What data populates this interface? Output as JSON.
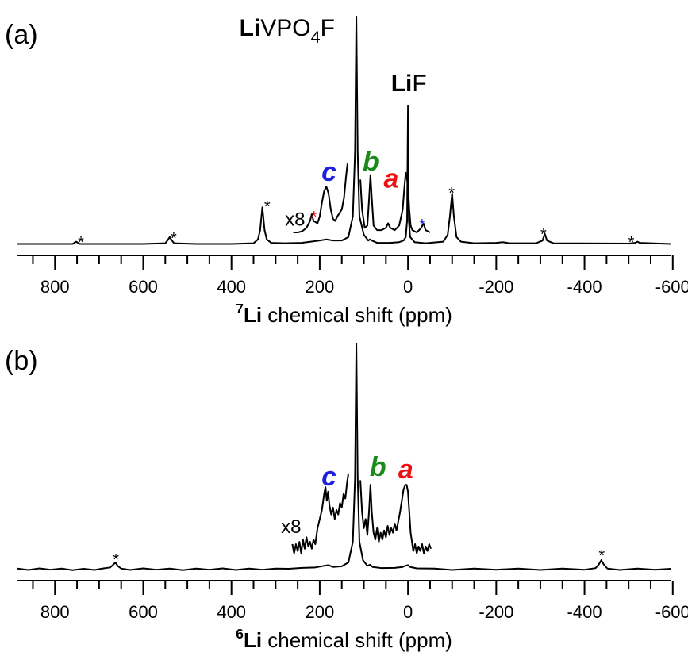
{
  "chart_data": [
    {
      "type": "line",
      "panel_label": "(a)",
      "x_label_parts": [
        {
          "text": "7",
          "sup": true,
          "bold": true
        },
        {
          "text": "Li",
          "bold": true
        },
        {
          "text": " chemical shift (ppm)"
        }
      ],
      "xlim": [
        885,
        -595
      ],
      "ylim": [
        -5,
        100
      ],
      "xticks": [
        800,
        600,
        400,
        200,
        0,
        -200,
        -400,
        -600
      ],
      "xminorticks": [
        850,
        750,
        700,
        650,
        550,
        500,
        450,
        350,
        300,
        250,
        150,
        100,
        50,
        -50,
        -100,
        -150,
        -250,
        -300,
        -350,
        -450,
        -500,
        -550
      ],
      "series": [
        {
          "color": "#000000",
          "x": [
            885,
            800,
            760,
            752,
            744,
            700,
            600,
            550,
            545,
            540,
            535,
            530,
            480,
            400,
            350,
            340,
            335,
            330,
            325,
            320,
            310,
            280,
            240,
            220,
            200,
            185,
            170,
            150,
            135,
            125,
            120,
            117,
            114,
            110,
            100,
            90,
            86,
            82,
            70,
            40,
            20,
            10,
            5,
            2,
            0,
            -2,
            -5,
            -15,
            -40,
            -80,
            -90,
            -95,
            -100,
            -104,
            -110,
            -120,
            -150,
            -200,
            -215,
            -230,
            -290,
            -305,
            -310,
            -315,
            -330,
            -500,
            -515,
            -520,
            -525,
            -595
          ],
          "values": [
            0,
            0,
            0,
            1,
            0,
            0,
            0,
            0.3,
            1.5,
            3,
            1.5,
            0.3,
            0,
            0,
            0.3,
            2,
            6,
            16,
            6,
            2,
            0.5,
            0.3,
            0.5,
            1,
            1.5,
            2,
            1.5,
            1.5,
            3,
            12,
            40,
            99,
            40,
            12,
            4,
            1.5,
            2,
            1.5,
            0.5,
            0.5,
            0.8,
            1.5,
            3,
            10,
            60,
            10,
            3,
            0.8,
            0.3,
            1,
            4,
            12,
            22,
            12,
            3,
            1,
            0.3,
            0.5,
            0.8,
            0.3,
            0.3,
            1.5,
            4.5,
            1.5,
            0.3,
            0.2,
            0.5,
            1,
            0.5,
            0
          ]
        },
        {
          "color": "#000000",
          "x": [
            260,
            250,
            240,
            230,
            222,
            218,
            214,
            205,
            200,
            195,
            190,
            185,
            180,
            175,
            170,
            165,
            160,
            150,
            145,
            140,
            137,
            130,
            108,
            104,
            98,
            92,
            88,
            85,
            82,
            78,
            70,
            60,
            50,
            45,
            40,
            30,
            20,
            12,
            8,
            5,
            2,
            0,
            -3,
            -6,
            -10,
            -20,
            -30,
            -35,
            -40,
            -50
          ],
          "values": [
            5,
            5,
            5.5,
            7,
            10,
            13,
            10,
            9,
            12,
            18,
            23,
            25,
            22,
            15,
            11,
            10,
            12,
            15,
            20,
            30,
            35,
            null,
            28,
            15,
            7,
            8,
            20,
            30,
            20,
            8,
            6,
            6,
            7,
            9,
            7,
            6,
            8,
            15,
            25,
            31,
            28,
            25,
            15,
            8,
            6,
            5,
            7,
            9,
            6,
            5
          ]
        }
      ],
      "annotations": [
        {
          "parts": [
            {
              "text": "Li",
              "bold": true
            },
            {
              "text": "VPO"
            },
            {
              "text": "4",
              "sub": true
            },
            {
              "text": "F"
            }
          ],
          "x": 274,
          "y": 90.7,
          "style": "formula",
          "color": "#000000"
        },
        {
          "parts": [
            {
              "text": "Li",
              "bold": true
            },
            {
              "text": "F"
            }
          ],
          "x": -2,
          "y": 66.5,
          "style": "formula",
          "color": "#000000"
        },
        {
          "parts": [
            {
              "text": "c"
            }
          ],
          "x": 179,
          "y": 27.5,
          "style": "letter",
          "color": "#1f1fe0"
        },
        {
          "parts": [
            {
              "text": "b"
            }
          ],
          "x": 84,
          "y": 32,
          "style": "letter",
          "color": "#1a8a1a"
        },
        {
          "parts": [
            {
              "text": "a"
            }
          ],
          "x": 38,
          "y": 24.5,
          "style": "letter",
          "color": "#ee1111"
        },
        {
          "parts": [
            {
              "text": "x8"
            }
          ],
          "x": 256,
          "y": 8,
          "style": "note",
          "color": "#000000"
        },
        {
          "parts": [
            {
              "text": "*"
            }
          ],
          "x": 741,
          "y": -1.5,
          "style": "star",
          "color": "#000000"
        },
        {
          "parts": [
            {
              "text": "*"
            }
          ],
          "x": 531,
          "y": 0.2,
          "style": "star",
          "color": "#000000"
        },
        {
          "parts": [
            {
              "text": "*"
            }
          ],
          "x": 319,
          "y": 14,
          "style": "star",
          "color": "#000000"
        },
        {
          "parts": [
            {
              "text": "*"
            }
          ],
          "x": -99,
          "y": 19.9,
          "style": "star",
          "color": "#000000"
        },
        {
          "parts": [
            {
              "text": "*"
            }
          ],
          "x": -307,
          "y": 1.9,
          "style": "star",
          "color": "#000000"
        },
        {
          "parts": [
            {
              "text": "*"
            }
          ],
          "x": -506,
          "y": -1.5,
          "style": "star",
          "color": "#000000"
        },
        {
          "parts": [
            {
              "text": "*"
            }
          ],
          "x": 213,
          "y": 9.5,
          "style": "star",
          "color": "#ee1111"
        },
        {
          "parts": [
            {
              "text": "*"
            }
          ],
          "x": -32,
          "y": 6.1,
          "style": "star",
          "color": "#1f1fe0"
        }
      ]
    },
    {
      "type": "line",
      "panel_label": "(b)",
      "x_label_parts": [
        {
          "text": "6",
          "sup": true,
          "bold": true
        },
        {
          "text": "Li",
          "bold": true
        },
        {
          "text": " chemical shift (ppm)"
        }
      ],
      "xlim": [
        885,
        -595
      ],
      "ylim": [
        -5,
        100
      ],
      "xticks": [
        800,
        600,
        400,
        200,
        0,
        -200,
        -400,
        -600
      ],
      "xminorticks": [
        850,
        750,
        700,
        650,
        550,
        500,
        450,
        350,
        300,
        250,
        150,
        100,
        50,
        -50,
        -100,
        -150,
        -250,
        -300,
        -350,
        -450,
        -500,
        -550
      ],
      "series": [
        {
          "color": "#000000",
          "x": [
            885,
            860,
            835,
            810,
            785,
            760,
            735,
            710,
            690,
            675,
            668,
            663,
            658,
            650,
            630,
            600,
            570,
            540,
            510,
            480,
            450,
            420,
            390,
            360,
            330,
            300,
            270,
            240,
            210,
            190,
            180,
            170,
            150,
            135,
            125,
            120,
            117,
            114,
            110,
            102,
            92,
            86,
            80,
            60,
            30,
            12,
            5,
            0,
            -5,
            -20,
            -60,
            -100,
            -150,
            -200,
            -250,
            -300,
            -350,
            -400,
            -425,
            -432,
            -438,
            -444,
            -452,
            -480,
            -520,
            -560,
            -595
          ],
          "values": [
            0.3,
            -0.3,
            0.4,
            -0.2,
            0.3,
            -0.4,
            0.2,
            -0.3,
            0.4,
            0.8,
            2,
            3,
            1.5,
            0.3,
            -0.3,
            0.4,
            -0.2,
            0.3,
            -0.4,
            0.3,
            -0.2,
            0.4,
            -0.3,
            0.3,
            -0.2,
            0.3,
            0.2,
            0.6,
            0.8,
            1.5,
            1.8,
            1,
            1.3,
            3,
            12,
            40,
            99,
            40,
            12,
            4,
            1.5,
            2,
            1,
            0.5,
            0.6,
            1,
            1.6,
            1.8,
            1,
            0.4,
            0.3,
            -0.3,
            0.3,
            -0.2,
            0.3,
            -0.3,
            0.3,
            -0.2,
            0.5,
            2,
            4,
            2,
            0.3,
            -0.3,
            0.3,
            -0.2,
            0.2
          ]
        },
        {
          "color": "#000000",
          "x": [
            262,
            258,
            254,
            250,
            246,
            242,
            238,
            234,
            230,
            226,
            222,
            218,
            214,
            210,
            205,
            200,
            195,
            190,
            187,
            184,
            181,
            178,
            174,
            170,
            166,
            162,
            158,
            154,
            150,
            146,
            142,
            138,
            135,
            130,
            108,
            104,
            100,
            96,
            92,
            88,
            85,
            82,
            78,
            74,
            70,
            66,
            62,
            58,
            54,
            50,
            46,
            42,
            38,
            34,
            30,
            26,
            22,
            18,
            14,
            10,
            6,
            3,
            0,
            -3,
            -6,
            -9,
            -12,
            -16,
            -20,
            -24,
            -28,
            -32,
            -36,
            -40,
            -44,
            -48,
            -52
          ],
          "values": [
            11,
            7,
            11,
            8,
            12,
            7,
            13,
            9,
            14,
            10,
            12,
            9,
            13,
            11,
            18,
            22,
            26,
            33,
            36,
            30,
            34,
            28,
            24,
            27,
            22,
            26,
            24,
            29,
            27,
            33,
            31,
            38,
            42,
            null,
            39,
            25,
            18,
            22,
            15,
            26,
            37,
            25,
            16,
            13,
            18,
            12,
            16,
            13,
            17,
            14,
            19,
            15,
            18,
            16,
            20,
            17,
            21,
            25,
            30,
            35,
            37,
            37,
            34,
            25,
            16,
            12,
            8,
            11,
            7,
            10,
            8,
            11,
            7,
            10,
            8,
            11,
            9
          ]
        }
      ],
      "annotations": [
        {
          "parts": [
            {
              "text": "c"
            }
          ],
          "x": 179,
          "y": 36.7,
          "style": "letter",
          "color": "#1f1fe0"
        },
        {
          "parts": [
            {
              "text": "b"
            }
          ],
          "x": 68,
          "y": 40.9,
          "style": "letter",
          "color": "#1a8a1a"
        },
        {
          "parts": [
            {
              "text": "a"
            }
          ],
          "x": 5,
          "y": 39.9,
          "style": "letter",
          "color": "#ee1111"
        },
        {
          "parts": [
            {
              "text": "x8"
            }
          ],
          "x": 265,
          "y": 15.9,
          "style": "note",
          "color": "#000000"
        },
        {
          "parts": [
            {
              "text": "*"
            }
          ],
          "x": 662,
          "y": 2,
          "style": "star",
          "color": "#000000"
        },
        {
          "parts": [
            {
              "text": "*"
            }
          ],
          "x": -439,
          "y": 3.7,
          "style": "star",
          "color": "#000000"
        }
      ]
    }
  ]
}
